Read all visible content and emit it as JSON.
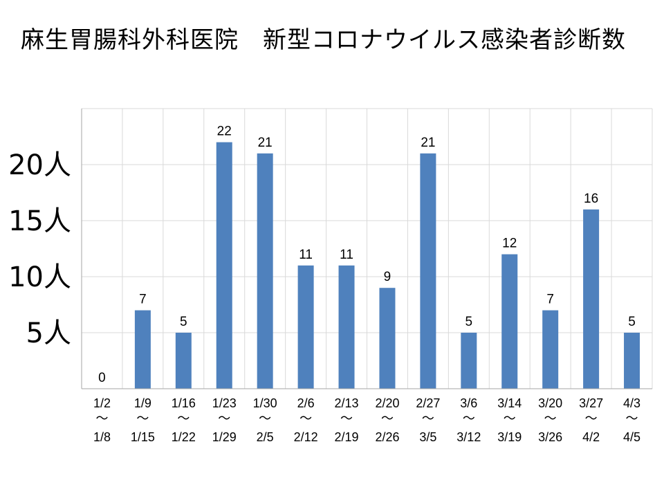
{
  "chart_data": {
    "type": "bar",
    "title": "麻生胃腸科外科医院　新型コロナウイルス感染者診断数",
    "categories": [
      {
        "start": "1/2",
        "end": "1/8"
      },
      {
        "start": "1/9",
        "end": "1/15"
      },
      {
        "start": "1/16",
        "end": "1/22"
      },
      {
        "start": "1/23",
        "end": "1/29"
      },
      {
        "start": "1/30",
        "end": "2/5"
      },
      {
        "start": "2/6",
        "end": "2/12"
      },
      {
        "start": "2/13",
        "end": "2/19"
      },
      {
        "start": "2/20",
        "end": "2/26"
      },
      {
        "start": "2/27",
        "end": "3/5"
      },
      {
        "start": "3/6",
        "end": "3/12"
      },
      {
        "start": "3/14",
        "end": "3/19"
      },
      {
        "start": "3/20",
        "end": "3/26"
      },
      {
        "start": "3/27",
        "end": "4/2"
      },
      {
        "start": "4/3",
        "end": "4/5"
      }
    ],
    "range_separator": "～",
    "values": [
      0,
      7,
      5,
      22,
      21,
      11,
      11,
      9,
      21,
      5,
      12,
      7,
      16,
      5
    ],
    "data_labels": [
      "0",
      "7",
      "5",
      "22",
      "21",
      "11",
      "11",
      "9",
      "21",
      "5",
      "12",
      "7",
      "16",
      "5"
    ],
    "ylim": [
      0,
      25
    ],
    "yticks": [
      {
        "value": 5,
        "label": "5人"
      },
      {
        "value": 10,
        "label": "10人"
      },
      {
        "value": 15,
        "label": "15人"
      },
      {
        "value": 20,
        "label": "20人"
      }
    ],
    "xlabel": "",
    "ylabel": "",
    "grid": true,
    "legend": "none",
    "colors": {
      "bar": "#4f81bd",
      "grid": "#d9d9d9",
      "axis": "#a6a6a6"
    }
  }
}
